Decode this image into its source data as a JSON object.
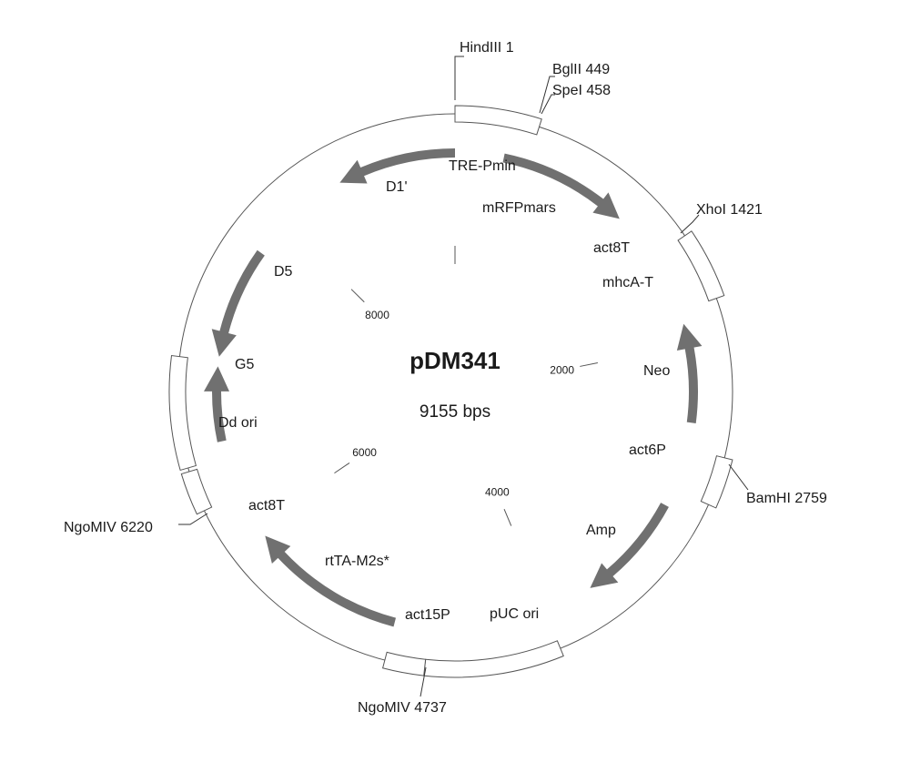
{
  "plasmid": {
    "name": "pDM341",
    "size_label": "9155 bps",
    "length": 9155
  },
  "colors": {
    "feature": "#707070",
    "line": "#555555",
    "text": "#1a1a1a"
  },
  "segments": [
    {
      "id": "seg-1",
      "start": 0,
      "end": 449
    },
    {
      "id": "seg-2",
      "start": 1421,
      "end": 1790
    },
    {
      "id": "seg-3",
      "start": 2640,
      "end": 2900
    },
    {
      "id": "seg-4",
      "start": 4010,
      "end": 4737
    },
    {
      "id": "seg-5",
      "start": 4737,
      "end": 4950
    },
    {
      "id": "seg-6",
      "start": 6220,
      "end": 6440
    },
    {
      "id": "seg-7",
      "start": 6460,
      "end": 7050
    }
  ],
  "sites": [
    {
      "name": "HindIII 1"
    },
    {
      "name": "BglII 449"
    },
    {
      "name": "SpeI 458"
    },
    {
      "name": "XhoI 1421"
    },
    {
      "name": "BamHI 2759"
    },
    {
      "name": "NgoMIV 4737"
    },
    {
      "name": "NgoMIV 6220"
    }
  ],
  "features": [
    {
      "name": "D1'",
      "start": 8420,
      "end": 9155,
      "direction": "ccw"
    },
    {
      "name": "mRFPmars",
      "start": 300,
      "end": 1110,
      "direction": "cw"
    },
    {
      "name": "D5",
      "start": 7080,
      "end": 7770,
      "direction": "ccw"
    },
    {
      "name": "G5",
      "start": 6560,
      "end": 7020,
      "direction": "cw"
    },
    {
      "name": "Neo",
      "start": 1870,
      "end": 2480,
      "direction": "ccw"
    },
    {
      "name": "Amp",
      "start": 3010,
      "end": 3700,
      "direction": "cw"
    },
    {
      "name": "rtTA-M2s*",
      "start": 4950,
      "end": 5920,
      "direction": "cw"
    }
  ],
  "labels": [
    {
      "id": "label-tre-pmin",
      "text": "TRE-Pmin"
    },
    {
      "id": "label-d1",
      "text": "D1'"
    },
    {
      "id": "label-mrfpmars",
      "text": "mRFPmars"
    },
    {
      "id": "label-act8t-top",
      "text": "act8T"
    },
    {
      "id": "label-mhca-t",
      "text": "mhcA-T"
    },
    {
      "id": "label-neo",
      "text": "Neo"
    },
    {
      "id": "label-act6p",
      "text": "act6P"
    },
    {
      "id": "label-amp",
      "text": "Amp"
    },
    {
      "id": "label-puc-ori",
      "text": "pUC ori"
    },
    {
      "id": "label-act15p",
      "text": "act15P"
    },
    {
      "id": "label-rtta",
      "text": "rtTA-M2s*"
    },
    {
      "id": "label-act8t-bottom",
      "text": "act8T"
    },
    {
      "id": "label-dd-ori",
      "text": "Dd ori"
    },
    {
      "id": "label-g5",
      "text": "G5"
    },
    {
      "id": "label-d5",
      "text": "D5"
    }
  ],
  "ticks": [
    {
      "pos": 0,
      "label": ""
    },
    {
      "pos": 2000,
      "label": "2000"
    },
    {
      "pos": 4000,
      "label": "4000"
    },
    {
      "pos": 6000,
      "label": "6000"
    },
    {
      "pos": 8000,
      "label": "8000"
    }
  ]
}
